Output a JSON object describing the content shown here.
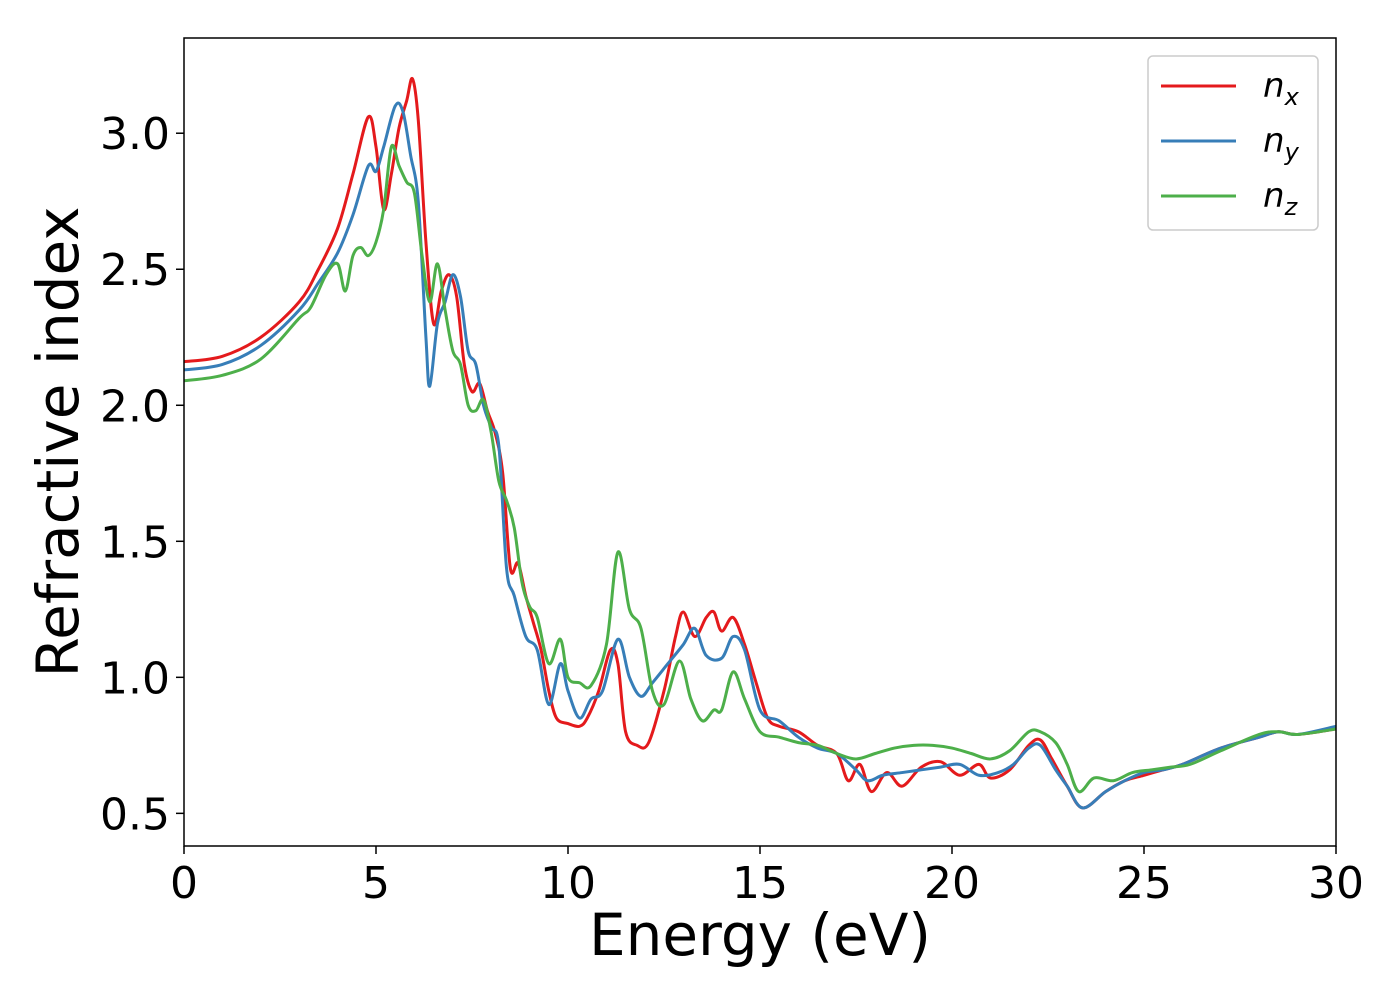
{
  "chart_data": {
    "type": "line",
    "title": "",
    "xlabel": "Energy (eV)",
    "ylabel": "Refractive index",
    "xlim": [
      0,
      30
    ],
    "ylim": [
      0.38,
      3.35
    ],
    "xticks": [
      0,
      5,
      10,
      15,
      20,
      25,
      30
    ],
    "xtick_labels": [
      "0",
      "5",
      "10",
      "15",
      "20",
      "25",
      "30"
    ],
    "yticks": [
      0.5,
      1.0,
      1.5,
      2.0,
      2.5,
      3.0
    ],
    "ytick_labels": [
      "0.5",
      "1.0",
      "1.5",
      "2.0",
      "2.5",
      "3.0"
    ],
    "grid": false,
    "legend": {
      "position": "top-right"
    },
    "series": [
      {
        "name": "n_x",
        "label_main": "n",
        "label_sub": "x",
        "color": "#e41a1c",
        "points": [
          [
            0,
            2.16
          ],
          [
            1,
            2.18
          ],
          [
            2,
            2.25
          ],
          [
            3,
            2.38
          ],
          [
            3.5,
            2.5
          ],
          [
            4,
            2.65
          ],
          [
            4.4,
            2.85
          ],
          [
            4.8,
            3.06
          ],
          [
            5.0,
            2.95
          ],
          [
            5.2,
            2.72
          ],
          [
            5.4,
            2.85
          ],
          [
            5.6,
            3.02
          ],
          [
            5.8,
            3.12
          ],
          [
            5.95,
            3.2
          ],
          [
            6.1,
            3.05
          ],
          [
            6.3,
            2.6
          ],
          [
            6.5,
            2.3
          ],
          [
            6.7,
            2.42
          ],
          [
            6.9,
            2.48
          ],
          [
            7.1,
            2.4
          ],
          [
            7.3,
            2.15
          ],
          [
            7.5,
            2.05
          ],
          [
            7.7,
            2.08
          ],
          [
            7.9,
            1.98
          ],
          [
            8.1,
            1.9
          ],
          [
            8.3,
            1.75
          ],
          [
            8.5,
            1.4
          ],
          [
            8.7,
            1.42
          ],
          [
            8.9,
            1.3
          ],
          [
            9.1,
            1.2
          ],
          [
            9.3,
            1.1
          ],
          [
            9.5,
            0.95
          ],
          [
            9.7,
            0.85
          ],
          [
            10.0,
            0.83
          ],
          [
            10.3,
            0.82
          ],
          [
            10.5,
            0.85
          ],
          [
            10.8,
            0.95
          ],
          [
            11.1,
            1.1
          ],
          [
            11.3,
            1.05
          ],
          [
            11.5,
            0.8
          ],
          [
            11.8,
            0.75
          ],
          [
            12.1,
            0.76
          ],
          [
            12.5,
            0.95
          ],
          [
            12.8,
            1.15
          ],
          [
            13.0,
            1.24
          ],
          [
            13.3,
            1.15
          ],
          [
            13.6,
            1.22
          ],
          [
            13.8,
            1.24
          ],
          [
            14.0,
            1.17
          ],
          [
            14.3,
            1.22
          ],
          [
            14.6,
            1.12
          ],
          [
            14.9,
            0.98
          ],
          [
            15.2,
            0.85
          ],
          [
            15.5,
            0.82
          ],
          [
            16.0,
            0.8
          ],
          [
            16.5,
            0.75
          ],
          [
            17.0,
            0.72
          ],
          [
            17.3,
            0.62
          ],
          [
            17.6,
            0.68
          ],
          [
            17.9,
            0.58
          ],
          [
            18.3,
            0.65
          ],
          [
            18.7,
            0.6
          ],
          [
            19.2,
            0.67
          ],
          [
            19.7,
            0.69
          ],
          [
            20.2,
            0.64
          ],
          [
            20.7,
            0.68
          ],
          [
            21.0,
            0.63
          ],
          [
            21.5,
            0.66
          ],
          [
            22.0,
            0.75
          ],
          [
            22.3,
            0.77
          ],
          [
            22.6,
            0.7
          ],
          [
            23.0,
            0.6
          ],
          [
            23.4,
            0.52
          ],
          [
            24.0,
            0.58
          ],
          [
            24.5,
            0.62
          ],
          [
            25.0,
            0.64
          ],
          [
            25.5,
            0.66
          ],
          [
            26.0,
            0.68
          ],
          [
            27.0,
            0.74
          ],
          [
            28.0,
            0.78
          ],
          [
            28.5,
            0.8
          ],
          [
            29.0,
            0.79
          ],
          [
            30.0,
            0.81
          ]
        ]
      },
      {
        "name": "n_y",
        "label_main": "n",
        "label_sub": "y",
        "color": "#377eb8",
        "points": [
          [
            0,
            2.13
          ],
          [
            1,
            2.15
          ],
          [
            2,
            2.22
          ],
          [
            3,
            2.35
          ],
          [
            3.5,
            2.45
          ],
          [
            4,
            2.56
          ],
          [
            4.4,
            2.7
          ],
          [
            4.8,
            2.88
          ],
          [
            5.0,
            2.86
          ],
          [
            5.2,
            2.95
          ],
          [
            5.5,
            3.1
          ],
          [
            5.7,
            3.08
          ],
          [
            5.9,
            2.92
          ],
          [
            6.1,
            2.75
          ],
          [
            6.3,
            2.25
          ],
          [
            6.4,
            2.07
          ],
          [
            6.6,
            2.3
          ],
          [
            6.8,
            2.38
          ],
          [
            7.0,
            2.48
          ],
          [
            7.2,
            2.4
          ],
          [
            7.4,
            2.2
          ],
          [
            7.6,
            2.15
          ],
          [
            7.8,
            2.0
          ],
          [
            8.0,
            1.92
          ],
          [
            8.2,
            1.85
          ],
          [
            8.4,
            1.4
          ],
          [
            8.6,
            1.3
          ],
          [
            8.9,
            1.15
          ],
          [
            9.2,
            1.1
          ],
          [
            9.5,
            0.9
          ],
          [
            9.8,
            1.05
          ],
          [
            10.0,
            0.95
          ],
          [
            10.3,
            0.85
          ],
          [
            10.6,
            0.92
          ],
          [
            10.9,
            0.95
          ],
          [
            11.3,
            1.14
          ],
          [
            11.6,
            1.0
          ],
          [
            11.9,
            0.93
          ],
          [
            12.2,
            0.98
          ],
          [
            12.6,
            1.05
          ],
          [
            13.0,
            1.12
          ],
          [
            13.3,
            1.18
          ],
          [
            13.6,
            1.08
          ],
          [
            14.0,
            1.07
          ],
          [
            14.3,
            1.15
          ],
          [
            14.6,
            1.1
          ],
          [
            15.0,
            0.88
          ],
          [
            15.5,
            0.84
          ],
          [
            16.0,
            0.78
          ],
          [
            16.5,
            0.74
          ],
          [
            17.0,
            0.72
          ],
          [
            17.5,
            0.66
          ],
          [
            17.8,
            0.62
          ],
          [
            18.2,
            0.64
          ],
          [
            18.7,
            0.65
          ],
          [
            19.2,
            0.66
          ],
          [
            19.7,
            0.67
          ],
          [
            20.2,
            0.68
          ],
          [
            20.7,
            0.64
          ],
          [
            21.2,
            0.65
          ],
          [
            21.6,
            0.68
          ],
          [
            22.0,
            0.74
          ],
          [
            22.3,
            0.75
          ],
          [
            22.7,
            0.66
          ],
          [
            23.0,
            0.6
          ],
          [
            23.4,
            0.52
          ],
          [
            24.0,
            0.58
          ],
          [
            24.5,
            0.62
          ],
          [
            25.0,
            0.65
          ],
          [
            25.5,
            0.66
          ],
          [
            26.0,
            0.68
          ],
          [
            27.0,
            0.74
          ],
          [
            28.0,
            0.78
          ],
          [
            28.5,
            0.8
          ],
          [
            29.0,
            0.79
          ],
          [
            30.0,
            0.82
          ]
        ]
      },
      {
        "name": "n_z",
        "label_main": "n",
        "label_sub": "z",
        "color": "#4daf4a",
        "points": [
          [
            0,
            2.09
          ],
          [
            1,
            2.11
          ],
          [
            2,
            2.17
          ],
          [
            3,
            2.32
          ],
          [
            3.3,
            2.36
          ],
          [
            3.7,
            2.48
          ],
          [
            4.0,
            2.52
          ],
          [
            4.2,
            2.42
          ],
          [
            4.4,
            2.55
          ],
          [
            4.6,
            2.58
          ],
          [
            4.8,
            2.55
          ],
          [
            5.0,
            2.6
          ],
          [
            5.2,
            2.72
          ],
          [
            5.4,
            2.95
          ],
          [
            5.6,
            2.88
          ],
          [
            5.8,
            2.82
          ],
          [
            6.0,
            2.78
          ],
          [
            6.2,
            2.55
          ],
          [
            6.4,
            2.38
          ],
          [
            6.6,
            2.52
          ],
          [
            6.8,
            2.35
          ],
          [
            7.0,
            2.2
          ],
          [
            7.2,
            2.15
          ],
          [
            7.4,
            2.0
          ],
          [
            7.6,
            1.98
          ],
          [
            7.8,
            2.02
          ],
          [
            8.0,
            1.9
          ],
          [
            8.2,
            1.72
          ],
          [
            8.4,
            1.65
          ],
          [
            8.6,
            1.55
          ],
          [
            8.8,
            1.35
          ],
          [
            9.0,
            1.26
          ],
          [
            9.2,
            1.22
          ],
          [
            9.5,
            1.05
          ],
          [
            9.8,
            1.14
          ],
          [
            10.0,
            1.0
          ],
          [
            10.3,
            0.98
          ],
          [
            10.6,
            0.97
          ],
          [
            11.0,
            1.12
          ],
          [
            11.3,
            1.46
          ],
          [
            11.6,
            1.25
          ],
          [
            11.9,
            1.18
          ],
          [
            12.2,
            0.95
          ],
          [
            12.5,
            0.9
          ],
          [
            12.9,
            1.06
          ],
          [
            13.2,
            0.92
          ],
          [
            13.5,
            0.84
          ],
          [
            13.8,
            0.88
          ],
          [
            14.0,
            0.88
          ],
          [
            14.3,
            1.02
          ],
          [
            14.6,
            0.92
          ],
          [
            15.0,
            0.8
          ],
          [
            15.5,
            0.78
          ],
          [
            16.0,
            0.76
          ],
          [
            16.5,
            0.75
          ],
          [
            17.0,
            0.72
          ],
          [
            17.5,
            0.7
          ],
          [
            18.0,
            0.72
          ],
          [
            18.5,
            0.74
          ],
          [
            19.0,
            0.75
          ],
          [
            19.5,
            0.75
          ],
          [
            20.0,
            0.74
          ],
          [
            20.5,
            0.72
          ],
          [
            21.0,
            0.7
          ],
          [
            21.5,
            0.73
          ],
          [
            22.0,
            0.8
          ],
          [
            22.3,
            0.8
          ],
          [
            22.7,
            0.76
          ],
          [
            23.0,
            0.68
          ],
          [
            23.3,
            0.58
          ],
          [
            23.7,
            0.63
          ],
          [
            24.2,
            0.62
          ],
          [
            24.7,
            0.65
          ],
          [
            25.2,
            0.66
          ],
          [
            25.7,
            0.67
          ],
          [
            26.2,
            0.68
          ],
          [
            27.0,
            0.73
          ],
          [
            28.0,
            0.79
          ],
          [
            28.5,
            0.8
          ],
          [
            29.0,
            0.79
          ],
          [
            30.0,
            0.81
          ]
        ]
      }
    ]
  }
}
